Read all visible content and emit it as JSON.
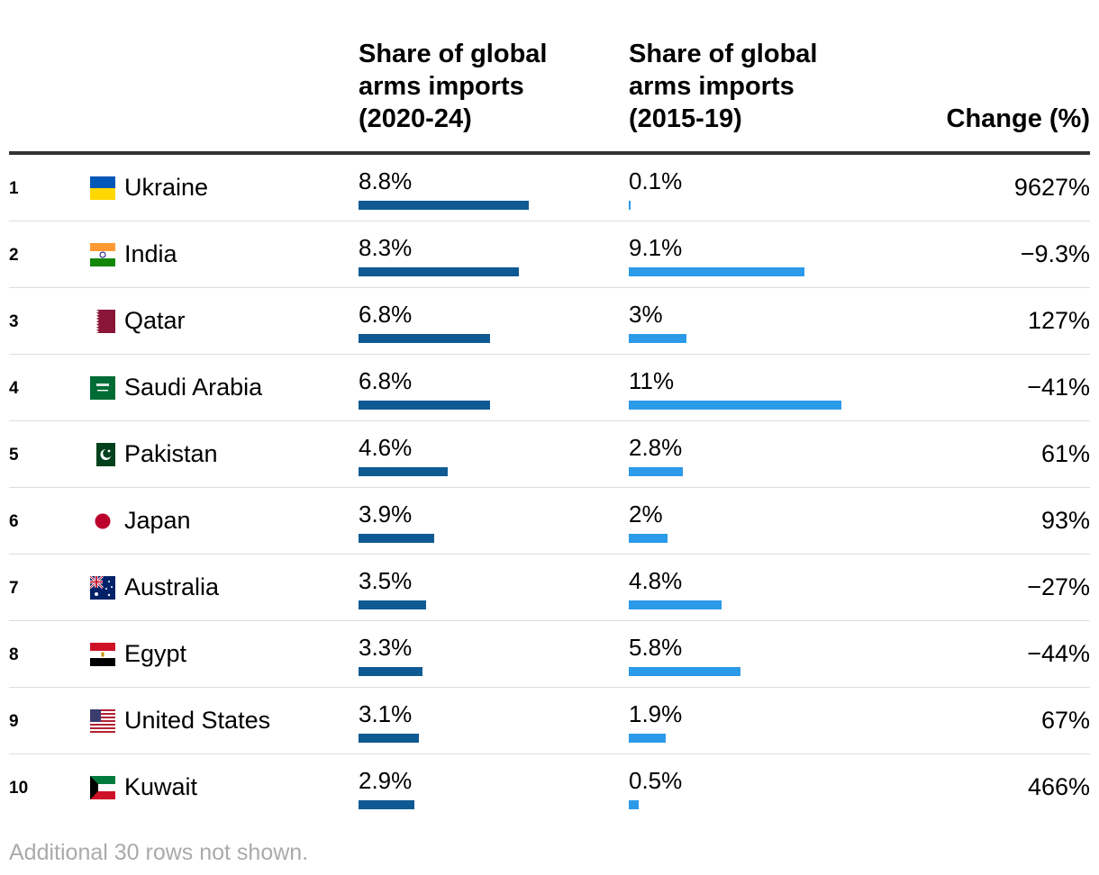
{
  "header": {
    "col_share_2020": [
      "Share of global",
      "arms imports",
      "(2020-24)"
    ],
    "col_share_2015": [
      "Share of global",
      "arms imports",
      "(2015-19)"
    ],
    "col_change": "Change (%)"
  },
  "footer": "Additional 30 rows not shown.",
  "colors": {
    "bar_2020": "#0f5a93",
    "bar_2015": "#2b9ae8"
  },
  "chart_data": {
    "type": "table",
    "columns": [
      "",
      "",
      "Share of global arms imports (2020-24)",
      "Share of global arms imports (2015-19)",
      "Change (%)"
    ],
    "bar_scale_max": 11,
    "rows": [
      {
        "rank": "1",
        "country": "Ukraine",
        "flag": "ukraine-flag-icon",
        "share_2020": 8.8,
        "share_2020_label": "8.8%",
        "share_2015": 0.1,
        "share_2015_label": "0.1%",
        "change": "9627%"
      },
      {
        "rank": "2",
        "country": "India",
        "flag": "india-flag-icon",
        "share_2020": 8.3,
        "share_2020_label": "8.3%",
        "share_2015": 9.1,
        "share_2015_label": "9.1%",
        "change": "−9.3%"
      },
      {
        "rank": "3",
        "country": "Qatar",
        "flag": "qatar-flag-icon",
        "share_2020": 6.8,
        "share_2020_label": "6.8%",
        "share_2015": 3,
        "share_2015_label": "3%",
        "change": "127%"
      },
      {
        "rank": "4",
        "country": "Saudi Arabia",
        "flag": "saudi-arabia-flag-icon",
        "share_2020": 6.8,
        "share_2020_label": "6.8%",
        "share_2015": 11,
        "share_2015_label": "11%",
        "change": "−41%"
      },
      {
        "rank": "5",
        "country": "Pakistan",
        "flag": "pakistan-flag-icon",
        "share_2020": 4.6,
        "share_2020_label": "4.6%",
        "share_2015": 2.8,
        "share_2015_label": "2.8%",
        "change": "61%"
      },
      {
        "rank": "6",
        "country": "Japan",
        "flag": "japan-flag-icon",
        "share_2020": 3.9,
        "share_2020_label": "3.9%",
        "share_2015": 2,
        "share_2015_label": "2%",
        "change": "93%"
      },
      {
        "rank": "7",
        "country": "Australia",
        "flag": "australia-flag-icon",
        "share_2020": 3.5,
        "share_2020_label": "3.5%",
        "share_2015": 4.8,
        "share_2015_label": "4.8%",
        "change": "−27%"
      },
      {
        "rank": "8",
        "country": "Egypt",
        "flag": "egypt-flag-icon",
        "share_2020": 3.3,
        "share_2020_label": "3.3%",
        "share_2015": 5.8,
        "share_2015_label": "5.8%",
        "change": "−44%"
      },
      {
        "rank": "9",
        "country": "United States",
        "flag": "united-states-flag-icon",
        "share_2020": 3.1,
        "share_2020_label": "3.1%",
        "share_2015": 1.9,
        "share_2015_label": "1.9%",
        "change": "67%"
      },
      {
        "rank": "10",
        "country": "Kuwait",
        "flag": "kuwait-flag-icon",
        "share_2020": 2.9,
        "share_2020_label": "2.9%",
        "share_2015": 0.5,
        "share_2015_label": "0.5%",
        "change": "466%"
      }
    ]
  }
}
